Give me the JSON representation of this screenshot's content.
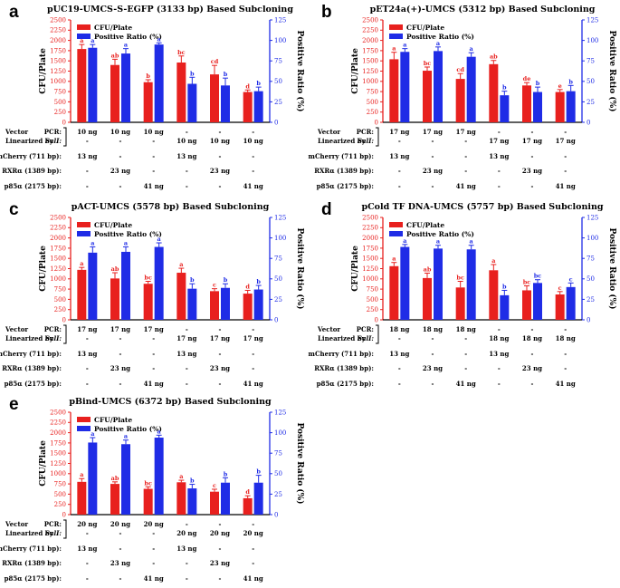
{
  "chart_data": [
    {
      "type": "bar",
      "panel": "a",
      "title": "pUC19-UMCS-S-EGFP (3133 bp) Based Subcloning",
      "ylabel": "CFU/Plate",
      "y2label": "Positive Ratio (%)",
      "ylim": [
        0,
        2500
      ],
      "y2lim": [
        0,
        125
      ],
      "yticks": [
        0,
        250,
        500,
        750,
        1000,
        1250,
        1500,
        1750,
        2000,
        2250,
        2500
      ],
      "y2ticks": [
        0,
        25,
        50,
        75,
        100,
        125
      ],
      "legend": [
        "CFU/Plate",
        "Positive Ratio (%)"
      ],
      "series": [
        {
          "name": "CFU/Plate",
          "values": [
            1790,
            1400,
            980,
            1460,
            1170,
            740
          ],
          "errors": [
            110,
            140,
            60,
            160,
            220,
            50
          ],
          "letters": [
            "a",
            "ab",
            "b",
            "bc",
            "cd",
            "d"
          ]
        },
        {
          "name": "Positive Ratio (%)",
          "values": [
            91,
            84,
            95,
            47,
            45,
            38
          ],
          "errors": [
            4,
            6,
            2,
            8,
            9,
            5
          ],
          "letters": [
            "a",
            "a",
            "a",
            "b",
            "b",
            "b"
          ]
        }
      ],
      "table": {
        "row_labels": [
          "Vector",
          "Linearized by",
          "PCR:",
          "SalI:",
          "mCherry (711 bp):",
          "RXRα (1389 bp):",
          "p85α (2175 bp):"
        ],
        "pcr": [
          "10 ng",
          "10 ng",
          "10 ng",
          "-",
          "-",
          "-"
        ],
        "sali": [
          "-",
          "-",
          "-",
          "10 ng",
          "10 ng",
          "10 ng"
        ],
        "mcherry": [
          "13 ng",
          "-",
          "-",
          "13 ng",
          "-",
          "-"
        ],
        "rxra": [
          "-",
          "23 ng",
          "-",
          "-",
          "23 ng",
          "-"
        ],
        "p85a": [
          "-",
          "-",
          "41 ng",
          "-",
          "-",
          "41 ng"
        ]
      }
    },
    {
      "type": "bar",
      "panel": "b",
      "title": "pET24a(+)-UMCS (5312 bp) Based Subcloning",
      "ylabel": "CFU/Plate",
      "y2label": "Positive Ratio (%)",
      "ylim": [
        0,
        2500
      ],
      "y2lim": [
        0,
        125
      ],
      "yticks": [
        0,
        250,
        500,
        750,
        1000,
        1250,
        1500,
        1750,
        2000,
        2250,
        2500
      ],
      "y2ticks": [
        0,
        25,
        50,
        75,
        100,
        125
      ],
      "legend": [
        "CFU/Plate",
        "Positive Ratio (%)"
      ],
      "series": [
        {
          "name": "CFU/Plate",
          "values": [
            1540,
            1260,
            1060,
            1420,
            900,
            740
          ],
          "errors": [
            170,
            90,
            130,
            90,
            70,
            60
          ],
          "letters": [
            "a",
            "bc",
            "cd",
            "ab",
            "de",
            "e"
          ]
        },
        {
          "name": "Positive Ratio (%)",
          "values": [
            86,
            87,
            80,
            33,
            37,
            38
          ],
          "errors": [
            4,
            5,
            5,
            5,
            6,
            7
          ],
          "letters": [
            "a",
            "a",
            "a",
            "b",
            "b",
            "b"
          ]
        }
      ],
      "table": {
        "row_labels": [
          "Vector",
          "Linearized by",
          "PCR:",
          "SalI:",
          "mCherry (711 bp):",
          "RXRα (1389 bp):",
          "p85α (2175 bp):"
        ],
        "pcr": [
          "17 ng",
          "17 ng",
          "17 ng",
          "-",
          "-",
          "-"
        ],
        "sali": [
          "-",
          "-",
          "-",
          "17 ng",
          "17 ng",
          "17 ng"
        ],
        "mcherry": [
          "13 ng",
          "-",
          "-",
          "13 ng",
          "-",
          "-"
        ],
        "rxra": [
          "-",
          "23 ng",
          "-",
          "-",
          "23 ng",
          "-"
        ],
        "p85a": [
          "-",
          "-",
          "41 ng",
          "-",
          "-",
          "41 ng"
        ]
      }
    },
    {
      "type": "bar",
      "panel": "c",
      "title": "pACT-UMCS (5578 bp) Based Subcloning",
      "ylabel": "CFU/Plate",
      "y2label": "Positive Ratio (%)",
      "ylim": [
        0,
        2500
      ],
      "y2lim": [
        0,
        125
      ],
      "yticks": [
        0,
        250,
        500,
        750,
        1000,
        1250,
        1500,
        1750,
        2000,
        2250,
        2500
      ],
      "y2ticks": [
        0,
        25,
        50,
        75,
        100,
        125
      ],
      "legend": [
        "CFU/Plate",
        "Positive Ratio (%)"
      ],
      "series": [
        {
          "name": "CFU/Plate",
          "values": [
            1220,
            1010,
            880,
            1150,
            700,
            640
          ],
          "errors": [
            60,
            140,
            60,
            110,
            60,
            80
          ],
          "letters": [
            "a",
            "ab",
            "bc",
            "a",
            "c",
            "d"
          ]
        },
        {
          "name": "Positive Ratio (%)",
          "values": [
            82,
            83,
            89,
            38,
            39,
            37
          ],
          "errors": [
            7,
            6,
            5,
            6,
            5,
            5
          ],
          "letters": [
            "a",
            "a",
            "a",
            "b",
            "b",
            "b"
          ]
        }
      ],
      "table": {
        "row_labels": [
          "Vector",
          "Linearized by",
          "PCR:",
          "SalI:",
          "mCherry (711 bp):",
          "RXRα (1389 bp):",
          "p85α (2175 bp):"
        ],
        "pcr": [
          "17 ng",
          "17 ng",
          "17 ng",
          "-",
          "-",
          "-"
        ],
        "sali": [
          "-",
          "-",
          "-",
          "17 ng",
          "17 ng",
          "17 ng"
        ],
        "mcherry": [
          "13 ng",
          "-",
          "-",
          "13 ng",
          "-",
          "-"
        ],
        "rxra": [
          "-",
          "23 ng",
          "-",
          "-",
          "23 ng",
          "-"
        ],
        "p85a": [
          "-",
          "-",
          "41 ng",
          "-",
          "-",
          "41 ng"
        ]
      }
    },
    {
      "type": "bar",
      "panel": "d",
      "title": "pCold TF DNA-UMCS (5757 bp) Based Subcloning",
      "ylabel": "CFU/Plate",
      "y2label": "Positive Ratio (%)",
      "ylim": [
        0,
        2500
      ],
      "y2lim": [
        0,
        125
      ],
      "yticks": [
        0,
        250,
        500,
        750,
        1000,
        1250,
        1500,
        1750,
        2000,
        2250,
        2500
      ],
      "y2ticks": [
        0,
        25,
        50,
        75,
        100,
        125
      ],
      "legend": [
        "CFU/Plate",
        "Positive Ratio (%)"
      ],
      "series": [
        {
          "name": "CFU/Plate",
          "values": [
            1310,
            1020,
            790,
            1210,
            720,
            620
          ],
          "errors": [
            90,
            120,
            150,
            140,
            110,
            70
          ],
          "letters": [
            "a",
            "ab",
            "bc",
            "a",
            "bc",
            "c"
          ]
        },
        {
          "name": "Positive Ratio (%)",
          "values": [
            89,
            87,
            86,
            30,
            45,
            40
          ],
          "errors": [
            3,
            4,
            5,
            6,
            4,
            5
          ],
          "letters": [
            "a",
            "a",
            "a",
            "b",
            "bc",
            "c"
          ]
        }
      ],
      "table": {
        "row_labels": [
          "Vector",
          "Linearized by",
          "PCR:",
          "SalI:",
          "mCherry (711 bp):",
          "RXRα (1389 bp):",
          "p85α (2175 bp):"
        ],
        "pcr": [
          "18 ng",
          "18 ng",
          "18 ng",
          "-",
          "-",
          "-"
        ],
        "sali": [
          "-",
          "-",
          "-",
          "18 ng",
          "18 ng",
          "18 ng"
        ],
        "mcherry": [
          "13 ng",
          "-",
          "-",
          "13 ng",
          "-",
          "-"
        ],
        "rxra": [
          "-",
          "23 ng",
          "-",
          "-",
          "23 ng",
          "-"
        ],
        "p85a": [
          "-",
          "-",
          "41 ng",
          "-",
          "-",
          "41 ng"
        ]
      }
    },
    {
      "type": "bar",
      "panel": "e",
      "title": "pBind-UMCS (6372 bp) Based Subcloning",
      "ylabel": "CFU/Plate",
      "y2label": "Positive Ratio (%)",
      "ylim": [
        0,
        2500
      ],
      "y2lim": [
        0,
        125
      ],
      "yticks": [
        0,
        250,
        500,
        750,
        1000,
        1250,
        1500,
        1750,
        2000,
        2250,
        2500
      ],
      "y2ticks": [
        0,
        25,
        50,
        75,
        100,
        125
      ],
      "legend": [
        "CFU/Plate",
        "Positive Ratio (%)"
      ],
      "series": [
        {
          "name": "CFU/Plate",
          "values": [
            800,
            750,
            630,
            790,
            560,
            400
          ],
          "errors": [
            80,
            50,
            50,
            50,
            60,
            60
          ],
          "letters": [
            "a",
            "ab",
            "bc",
            "a",
            "c",
            "d"
          ]
        },
        {
          "name": "Positive Ratio (%)",
          "values": [
            88,
            86,
            94,
            32,
            39,
            39
          ],
          "errors": [
            6,
            5,
            3,
            5,
            6,
            9
          ],
          "letters": [
            "a",
            "a",
            "a",
            "b",
            "b",
            "b"
          ]
        }
      ],
      "table": {
        "row_labels": [
          "Vector",
          "Linearized by",
          "PCR:",
          "SalI:",
          "mCherry (711 bp):",
          "RXRα (1389 bp):",
          "p85α (2175 bp):"
        ],
        "pcr": [
          "20 ng",
          "20 ng",
          "20 ng",
          "-",
          "-",
          "-"
        ],
        "sali": [
          "-",
          "-",
          "-",
          "20 ng",
          "20 ng",
          "20 ng"
        ],
        "mcherry": [
          "13 ng",
          "-",
          "-",
          "13 ng",
          "-",
          "-"
        ],
        "rxra": [
          "-",
          "23 ng",
          "-",
          "-",
          "23 ng",
          "-"
        ],
        "p85a": [
          "-",
          "-",
          "41 ng",
          "-",
          "-",
          "41 ng"
        ]
      }
    }
  ],
  "colors": {
    "cfu": "#e8201e",
    "ratio": "#1f2ce6",
    "axis_left": "#e8201e",
    "axis_right": "#1f2ce6",
    "text": "#000000"
  }
}
